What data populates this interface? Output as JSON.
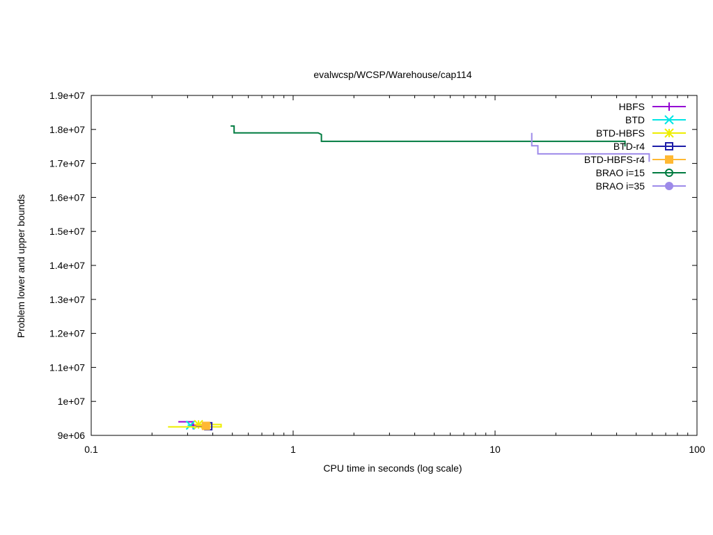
{
  "chart_data": {
    "type": "line",
    "title": "evalwcsp/WCSP/Warehouse/cap114",
    "xlabel": "CPU time in seconds (log scale)",
    "ylabel": "Problem lower and upper bounds",
    "x_scale": "log",
    "xlim": [
      0.1,
      100
    ],
    "ylim": [
      9000000,
      19000000
    ],
    "x_ticks": [
      0.1,
      1,
      10,
      100
    ],
    "x_tick_labels": [
      "0.1",
      "1",
      "10",
      "100"
    ],
    "y_ticks": [
      9000000,
      10000000,
      11000000,
      12000000,
      13000000,
      14000000,
      15000000,
      16000000,
      17000000,
      18000000,
      19000000
    ],
    "y_tick_labels": [
      "9e+06",
      "1e+07",
      "1.1e+07",
      "1.2e+07",
      "1.3e+07",
      "1.4e+07",
      "1.5e+07",
      "1.6e+07",
      "1.7e+07",
      "1.8e+07",
      "1.9e+07"
    ],
    "grid": false,
    "legend_position": "top-right",
    "series": [
      {
        "name": "HBFS",
        "color": "#9400d3",
        "marker": "plus",
        "points": [
          [
            0.27,
            9400000
          ],
          [
            0.32,
            9400000
          ],
          [
            0.32,
            9300000
          ]
        ]
      },
      {
        "name": "BTD",
        "color": "#00e5e5",
        "marker": "cross",
        "points": [
          [
            0.3,
            9300000
          ],
          [
            0.31,
            9300000
          ]
        ]
      },
      {
        "name": "BTD-HBFS",
        "color": "#eeee00",
        "marker": "star",
        "points": [
          [
            0.24,
            9250000
          ],
          [
            0.44,
            9250000
          ],
          [
            0.44,
            9320000
          ],
          [
            0.34,
            9320000
          ]
        ]
      },
      {
        "name": "BTD-r4",
        "color": "#1c1ca8",
        "marker": "open-square",
        "points": [
          [
            0.33,
            9270000
          ],
          [
            0.38,
            9270000
          ]
        ]
      },
      {
        "name": "BTD-HBFS-r4",
        "color": "#ffb833",
        "marker": "filled-square",
        "points": [
          [
            0.33,
            9280000
          ],
          [
            0.37,
            9280000
          ]
        ]
      },
      {
        "name": "BRAO i=15",
        "color": "#007b40",
        "marker": "open-circle",
        "points": [
          [
            0.49,
            18100000
          ],
          [
            0.51,
            18100000
          ],
          [
            0.51,
            17900000
          ],
          [
            1.33,
            17900000
          ],
          [
            1.38,
            17850000
          ],
          [
            1.38,
            17650000
          ],
          [
            44,
            17650000
          ],
          [
            44,
            17500000
          ]
        ]
      },
      {
        "name": "BRAO i=35",
        "color": "#9d8ae9",
        "marker": "filled-circle",
        "points": [
          [
            15.2,
            17900000
          ],
          [
            15.2,
            17520000
          ],
          [
            16.3,
            17520000
          ],
          [
            16.3,
            17280000
          ],
          [
            58,
            17280000
          ],
          [
            58,
            17050000
          ]
        ]
      }
    ]
  }
}
